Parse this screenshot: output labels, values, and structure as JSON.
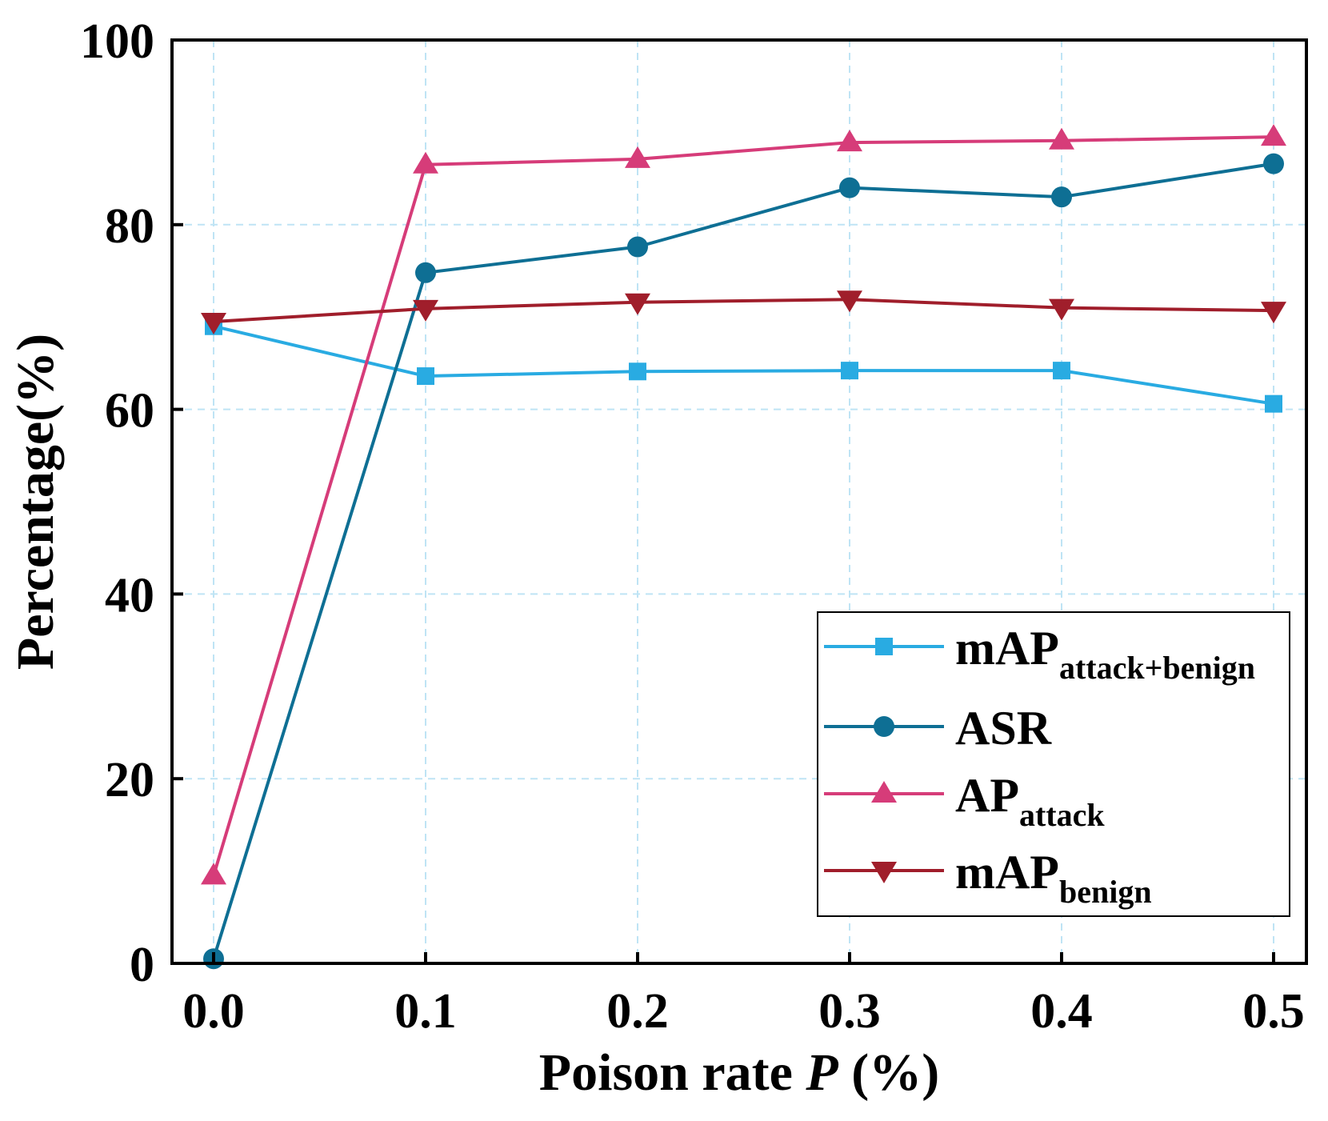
{
  "chart_data": {
    "type": "line",
    "xlabel": {
      "prefix": "Poison rate ",
      "var": "P",
      "suffix": " (%)"
    },
    "ylabel": "Percentage(%)",
    "xlim": [
      -0.02,
      0.52
    ],
    "ylim": [
      0,
      100
    ],
    "x": [
      0.0,
      0.1,
      0.2,
      0.3,
      0.4,
      0.5
    ],
    "x_tick_labels": [
      "0.0",
      "0.1",
      "0.2",
      "0.3",
      "0.4",
      "0.5"
    ],
    "y_ticks": [
      0,
      20,
      40,
      60,
      80,
      100
    ],
    "y_tick_labels": [
      "0",
      "20",
      "40",
      "60",
      "80",
      "100"
    ],
    "grid": true,
    "legend_position": "bottom-right",
    "series": [
      {
        "name": "mAP",
        "name_sub": "attack+benign",
        "color": "#29abe2",
        "marker": "square",
        "values": [
          69.0,
          63.6,
          64.1,
          64.2,
          64.2,
          60.6
        ]
      },
      {
        "name": "ASR",
        "name_sub": "",
        "color": "#0e6f94",
        "marker": "circle",
        "values": [
          0.5,
          74.8,
          77.6,
          84.0,
          83.0,
          86.6
        ]
      },
      {
        "name": "AP",
        "name_sub": "attack",
        "color": "#d63c79",
        "marker": "triangle-up",
        "values": [
          9.5,
          86.5,
          87.1,
          88.9,
          89.1,
          89.5
        ]
      },
      {
        "name": "mAP",
        "name_sub": "benign",
        "color": "#a01e2b",
        "marker": "triangle-down",
        "values": [
          69.5,
          70.9,
          71.6,
          71.9,
          71.0,
          70.7
        ]
      }
    ]
  }
}
